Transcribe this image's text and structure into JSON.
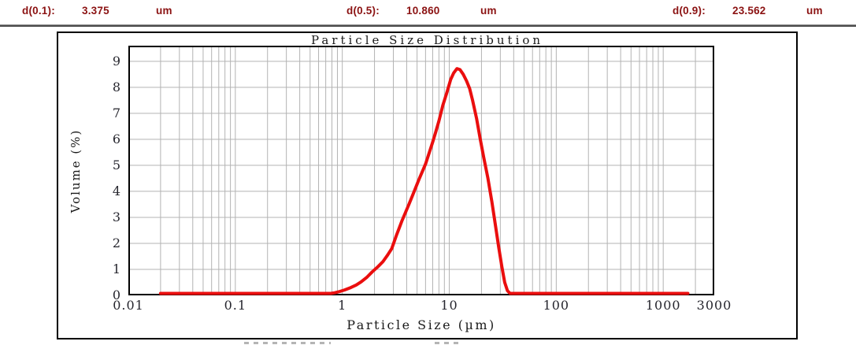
{
  "header": {
    "accent_color": "#8b1212",
    "items": [
      {
        "label": "d(0.1):",
        "value": "3.375",
        "unit": "um"
      },
      {
        "label": "d(0.5):",
        "value": "10.860",
        "unit": "um"
      },
      {
        "label": "d(0.9):",
        "value": "23.562",
        "unit": "um"
      }
    ]
  },
  "chart_data": {
    "type": "line",
    "title": "Particle Size Distribution",
    "xlabel": "Particle Size (µm)",
    "ylabel": "Volume (%)",
    "x_scale": "log",
    "xlim": [
      0.01,
      3000
    ],
    "ylim": [
      0,
      9.6
    ],
    "x_ticks": [
      "0.01",
      "0.1",
      "1",
      "10",
      "100",
      "1000",
      "3000"
    ],
    "x_tick_values": [
      0.01,
      0.1,
      1,
      10,
      100,
      1000,
      3000
    ],
    "y_ticks": [
      0,
      1,
      2,
      3,
      4,
      5,
      6,
      7,
      8,
      9
    ],
    "grid": true,
    "grid_color": "#b3b3b3",
    "border_color": "#000000",
    "line_color": "#ea0e0e",
    "legend": "none",
    "series": [
      {
        "name": "volume-distribution",
        "points": [
          [
            0.02,
            0
          ],
          [
            0.3,
            0
          ],
          [
            0.55,
            0
          ],
          [
            0.62,
            0.01
          ],
          [
            0.7,
            0.03
          ],
          [
            0.78,
            0.06
          ],
          [
            0.85,
            0.1
          ],
          [
            0.95,
            0.15
          ],
          [
            1.05,
            0.21
          ],
          [
            1.2,
            0.3
          ],
          [
            1.35,
            0.4
          ],
          [
            1.5,
            0.52
          ],
          [
            1.7,
            0.7
          ],
          [
            1.9,
            0.9
          ],
          [
            2.15,
            1.1
          ],
          [
            2.4,
            1.3
          ],
          [
            2.65,
            1.55
          ],
          [
            2.9,
            1.8
          ],
          [
            3.2,
            2.3
          ],
          [
            3.6,
            2.85
          ],
          [
            4.2,
            3.5
          ],
          [
            4.7,
            4.0
          ],
          [
            5.2,
            4.45
          ],
          [
            6,
            5.05
          ],
          [
            7,
            5.9
          ],
          [
            7.5,
            6.3
          ],
          [
            8,
            6.7
          ],
          [
            8.7,
            7.3
          ],
          [
            9.5,
            7.8
          ],
          [
            10.3,
            8.3
          ],
          [
            11,
            8.55
          ],
          [
            11.8,
            8.72
          ],
          [
            12.6,
            8.68
          ],
          [
            13.5,
            8.5
          ],
          [
            14.5,
            8.25
          ],
          [
            15.5,
            7.95
          ],
          [
            16.5,
            7.5
          ],
          [
            18,
            6.8
          ],
          [
            19.5,
            6.0
          ],
          [
            21,
            5.3
          ],
          [
            23,
            4.5
          ],
          [
            25,
            3.6
          ],
          [
            27,
            2.7
          ],
          [
            29,
            1.85
          ],
          [
            31,
            1.1
          ],
          [
            33,
            0.5
          ],
          [
            35,
            0.18
          ],
          [
            37,
            0.04
          ],
          [
            39,
            0.01
          ],
          [
            42,
            0
          ],
          [
            60,
            0
          ],
          [
            200,
            0
          ],
          [
            800,
            0
          ],
          [
            1700,
            0
          ]
        ]
      }
    ]
  }
}
